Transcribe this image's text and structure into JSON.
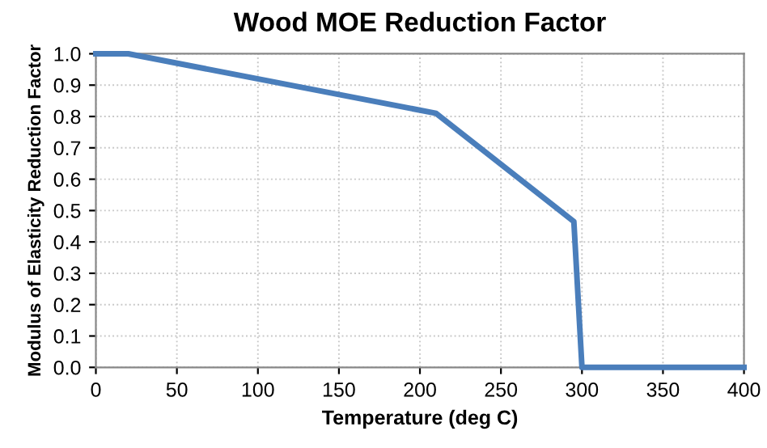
{
  "chart_data": {
    "type": "line",
    "title": "Wood MOE Reduction Factor",
    "xlabel": "Temperature (deg C)",
    "ylabel": "Modulus of Elasticity Reduction Factor",
    "x": [
      0,
      20,
      210,
      295,
      300,
      400
    ],
    "series": [
      {
        "color": "#4a7ebb",
        "values": [
          1.0,
          1.0,
          0.81,
          0.465,
          0.0,
          0.0
        ]
      }
    ],
    "xlim": [
      0,
      400
    ],
    "xticks": [
      0,
      50,
      100,
      150,
      200,
      250,
      300,
      350,
      400
    ],
    "ylim": [
      0,
      1.0
    ],
    "yticks": [
      {
        "value": 0,
        "label": "0.0"
      },
      {
        "value": 0.1,
        "label": "0.1"
      },
      {
        "value": 0.2,
        "label": "0.2"
      },
      {
        "value": 0.3,
        "label": "0.3"
      },
      {
        "value": 0.4,
        "label": "0.4"
      },
      {
        "value": 0.5,
        "label": "0.5"
      },
      {
        "value": 0.6,
        "label": "0.6"
      },
      {
        "value": 0.7,
        "label": "0.7"
      },
      {
        "value": 0.8,
        "label": "0.8"
      },
      {
        "value": 0.9,
        "label": "0.9"
      },
      {
        "value": 1.0,
        "label": "1.0"
      }
    ],
    "grid": true,
    "marker": "none",
    "line_style": "solid"
  }
}
